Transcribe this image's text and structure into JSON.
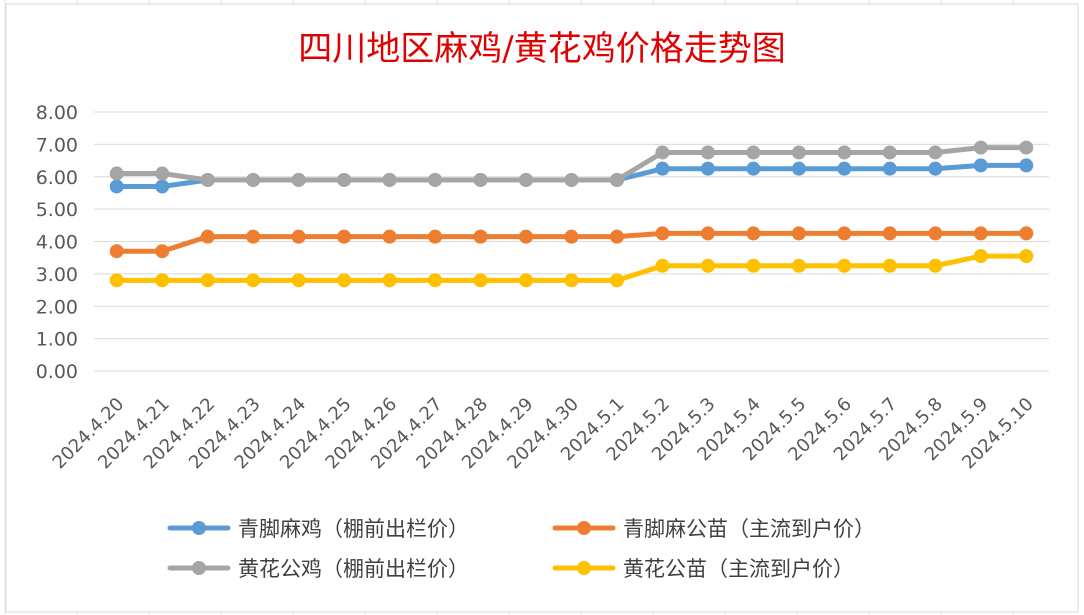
{
  "chart_data": {
    "type": "line",
    "title": "四川地区麻鸡/黄花鸡价格走势图",
    "xlabel": "",
    "ylabel": "",
    "ylim": [
      0,
      8
    ],
    "yticks": [
      "0.00",
      "1.00",
      "2.00",
      "3.00",
      "4.00",
      "5.00",
      "6.00",
      "7.00",
      "8.00"
    ],
    "grid": "horizontal",
    "legend_position": "bottom",
    "categories": [
      "2024.4.20",
      "2024.4.21",
      "2024.4.22",
      "2024.4.23",
      "2024.4.24",
      "2024.4.25",
      "2024.4.26",
      "2024.4.27",
      "2024.4.28",
      "2024.4.29",
      "2024.4.30",
      "2024.5.1",
      "2024.5.2",
      "2024.5.3",
      "2024.5.4",
      "2024.5.5",
      "2024.5.6",
      "2024.5.7",
      "2024.5.8",
      "2024.5.9",
      "2024.5.10"
    ],
    "series": [
      {
        "name": "青脚麻鸡（棚前出栏价）",
        "color": "#5b9bd5",
        "values": [
          5.7,
          5.7,
          5.9,
          5.9,
          5.9,
          5.9,
          5.9,
          5.9,
          5.9,
          5.9,
          5.9,
          5.9,
          6.25,
          6.25,
          6.25,
          6.25,
          6.25,
          6.25,
          6.25,
          6.35,
          6.35
        ]
      },
      {
        "name": "青脚麻公苗（主流到户价）",
        "color": "#ed7d31",
        "values": [
          3.7,
          3.7,
          4.15,
          4.15,
          4.15,
          4.15,
          4.15,
          4.15,
          4.15,
          4.15,
          4.15,
          4.15,
          4.25,
          4.25,
          4.25,
          4.25,
          4.25,
          4.25,
          4.25,
          4.25,
          4.25
        ]
      },
      {
        "name": "黄花公鸡（棚前出栏价）",
        "color": "#a5a5a5",
        "values": [
          6.1,
          6.1,
          5.9,
          5.9,
          5.9,
          5.9,
          5.9,
          5.9,
          5.9,
          5.9,
          5.9,
          5.9,
          6.75,
          6.75,
          6.75,
          6.75,
          6.75,
          6.75,
          6.75,
          6.9,
          6.9
        ]
      },
      {
        "name": "黄花公苗（主流到户价）",
        "color": "#ffc000",
        "values": [
          2.8,
          2.8,
          2.8,
          2.8,
          2.8,
          2.8,
          2.8,
          2.8,
          2.8,
          2.8,
          2.8,
          2.8,
          3.25,
          3.25,
          3.25,
          3.25,
          3.25,
          3.25,
          3.25,
          3.55,
          3.55
        ]
      }
    ]
  }
}
